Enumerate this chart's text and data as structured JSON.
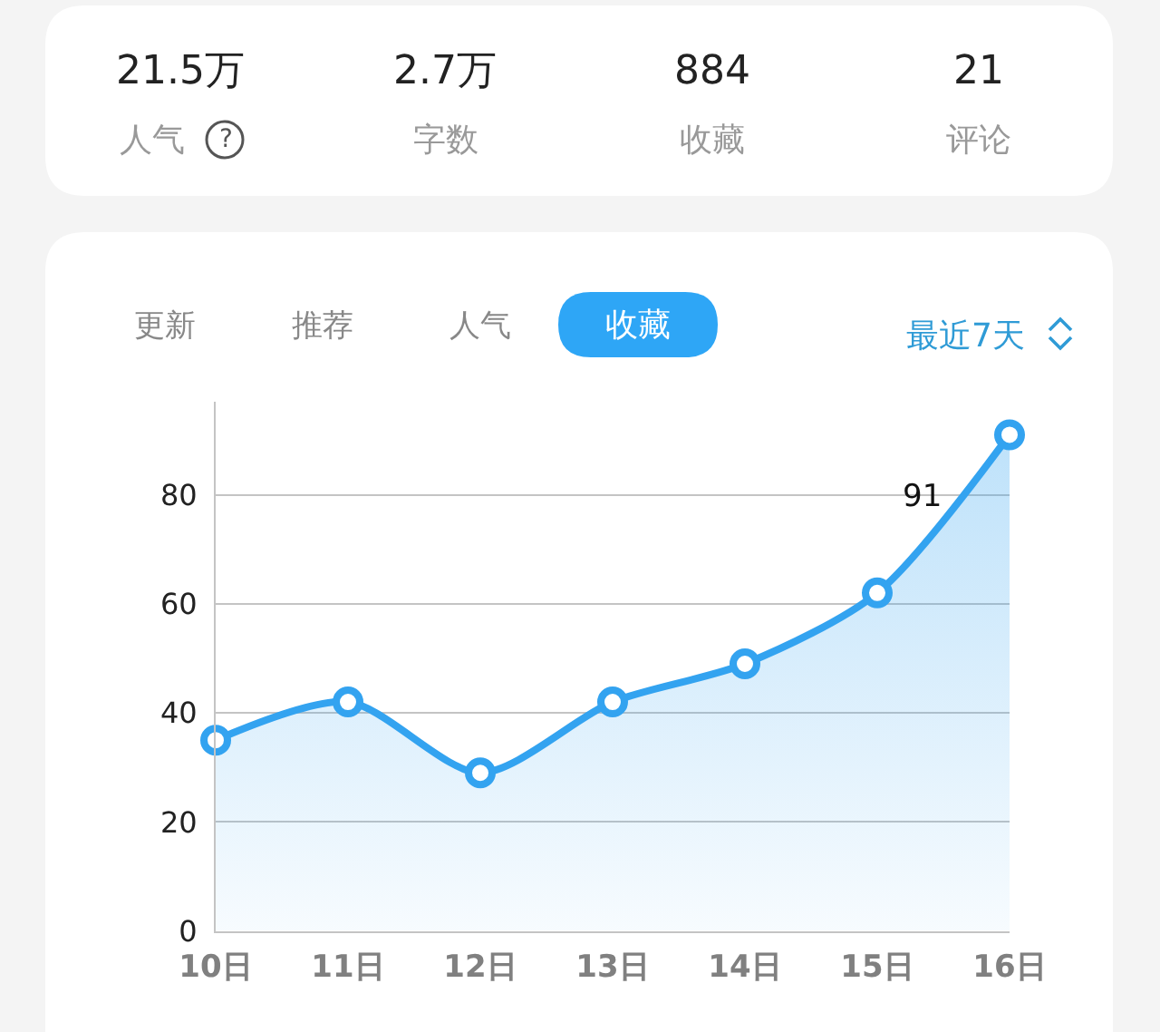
{
  "chart_data": [
    {
      "type": "other",
      "annotations": [
        "21.5万",
        "人气",
        "?",
        "2.7万",
        "字数",
        "884",
        "收藏",
        "21",
        "评论"
      ]
    },
    {
      "type": "area",
      "title": "收藏",
      "subtitle": "最近7天",
      "annotations": [
        "更新",
        "推荐",
        "人气"
      ],
      "categories": [
        "10日",
        "11日",
        "12日",
        "13日",
        "14日",
        "15日",
        "16日"
      ],
      "values": [
        35,
        42,
        29,
        42,
        49,
        62,
        91
      ],
      "value_labels": [
        null,
        null,
        null,
        null,
        null,
        null,
        "91"
      ],
      "color": "#33a3f0",
      "ylim": [
        0,
        97
      ],
      "yticks": [
        0,
        20,
        40,
        60,
        80
      ],
      "grid": "y",
      "marker": "circle"
    }
  ]
}
